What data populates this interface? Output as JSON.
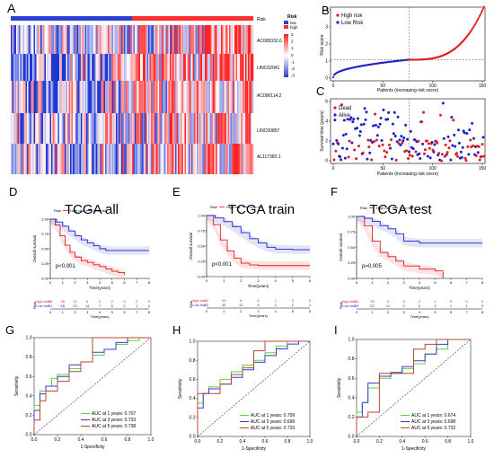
{
  "colors": {
    "high": "#e31a1c",
    "low": "#1f1fcc",
    "heat_high": "#ff2a2a",
    "heat_low": "#1f3fd0",
    "roc_1yr": "#5fd33f",
    "roc_3yr": "#3a3ad0",
    "roc_5yr": "#b34a33"
  },
  "panel_letters": {
    "A": "A",
    "B": "B",
    "C": "C",
    "D": "D",
    "E": "E",
    "F": "F",
    "G": "G",
    "H": "H",
    "I": "I"
  },
  "heatmap": {
    "risk_label": "Risk",
    "genes": [
      "AC005332.6",
      "LINC02041",
      "AC090114.2",
      "LINC00857",
      "AL117382.1"
    ],
    "legend_title": "Risk",
    "legend_low": "low",
    "legend_high": "high",
    "scale_ticks": [
      "3",
      "2",
      "1",
      "0",
      "-1",
      "-2",
      "-3"
    ]
  },
  "chart_data": [
    {
      "panel": "B",
      "type": "scatter",
      "ylabel": "Risk score",
      "xlabel": "Patients (increasing risk socre)",
      "xticks": [
        "0",
        "50",
        "100",
        "150"
      ],
      "yticks": [
        "0",
        "1",
        "2",
        "3",
        "4"
      ],
      "ylim": [
        0,
        4.3
      ],
      "xlim": [
        0,
        178
      ],
      "cutoff_x": 89,
      "cutoff_y": 1.08,
      "legend": [
        "High risk",
        "Low Risk"
      ]
    },
    {
      "panel": "C",
      "type": "scatter",
      "ylabel": "Survival time (years)",
      "xlabel": "Patients (increasing risk socre)",
      "xticks": [
        "0",
        "50",
        "100",
        "150"
      ],
      "yticks": [
        "0",
        "2",
        "4",
        "6"
      ],
      "ylim": [
        0,
        7
      ],
      "cutoff_x": 89,
      "legend": [
        "Dead",
        "Alive"
      ]
    },
    {
      "panel": "D",
      "type": "line",
      "title": "TCGA all",
      "legend_title": "Risk",
      "legend": [
        "High risk",
        "Low risk"
      ],
      "ylabel": "Overall survival",
      "xlabel": "Time(years)",
      "xticks": [
        "0",
        "1",
        "2",
        "3",
        "4",
        "5",
        "6",
        "7",
        "8"
      ],
      "yticks": [
        "0.00",
        "0.25",
        "0.50",
        "0.75",
        "1.00"
      ],
      "pvalue": "p<0.001",
      "table_ylabel": "Risk",
      "table_rows": [
        {
          "label": "High risk",
          "values": [
            "88",
            "49",
            "12",
            "6",
            "2",
            "2",
            "0",
            "0",
            "0"
          ]
        },
        {
          "label": "Low risk",
          "values": [
            "91",
            "65",
            "23",
            "14",
            "7",
            "5",
            "2",
            "1",
            "0"
          ]
        }
      ],
      "table_xlabel": "Time(years)",
      "series": [
        {
          "name": "High risk",
          "x": [
            0,
            0.4,
            0.8,
            1.2,
            1.6,
            2.0,
            2.5,
            3.0,
            3.5,
            4.0,
            4.5,
            5.0,
            5.5,
            6.0
          ],
          "y": [
            1.0,
            0.9,
            0.72,
            0.56,
            0.44,
            0.36,
            0.3,
            0.27,
            0.23,
            0.2,
            0.16,
            0.12,
            0.1,
            0.06
          ]
        },
        {
          "name": "Low risk",
          "x": [
            0,
            0.5,
            1.0,
            1.5,
            2.0,
            2.5,
            3.0,
            3.5,
            4.0,
            4.5,
            6.0,
            7.0,
            8.0
          ],
          "y": [
            1.0,
            0.95,
            0.88,
            0.8,
            0.72,
            0.65,
            0.6,
            0.55,
            0.5,
            0.47,
            0.47,
            0.47,
            0.47
          ]
        }
      ]
    },
    {
      "panel": "E",
      "type": "line",
      "title": "TCGA train",
      "legend_title": "Risk",
      "legend": [
        "High risk",
        "Low risk"
      ],
      "ylabel": "Overall survival",
      "xlabel": "Time(years)",
      "xticks": [
        "0",
        "1",
        "2",
        "3",
        "4",
        "5",
        "6"
      ],
      "yticks": [
        "0.00",
        "0.25",
        "0.50",
        "0.75",
        "1.00"
      ],
      "pvalue": "p<0.001",
      "table_ylabel": "Risk",
      "table_rows": [
        {
          "label": "High risk",
          "values": [
            "62",
            "34",
            "8",
            "5",
            "2",
            "2",
            "0"
          ]
        },
        {
          "label": "Low risk",
          "values": [
            "62",
            "43",
            "12",
            "5",
            "2",
            "2",
            "1"
          ]
        }
      ],
      "table_xlabel": "Time(years)",
      "series": [
        {
          "name": "High risk",
          "x": [
            0,
            0.4,
            0.8,
            1.2,
            1.6,
            2.0,
            2.5,
            3.0,
            3.5,
            4.0,
            5.0,
            6.0
          ],
          "y": [
            1.0,
            0.85,
            0.6,
            0.42,
            0.3,
            0.22,
            0.19,
            0.18,
            0.18,
            0.18,
            0.18,
            0.18
          ]
        },
        {
          "name": "Low risk",
          "x": [
            0,
            0.5,
            1.0,
            1.5,
            2.0,
            2.5,
            3.0,
            3.5,
            4.0,
            5.0,
            6.0
          ],
          "y": [
            1.0,
            0.96,
            0.9,
            0.82,
            0.72,
            0.62,
            0.55,
            0.48,
            0.45,
            0.44,
            0.44
          ]
        }
      ]
    },
    {
      "panel": "F",
      "type": "line",
      "title": "TCGA test",
      "legend_title": "Risk",
      "legend": [
        "High risk",
        "Low risk"
      ],
      "ylabel": "Overall survival",
      "xlabel": "Time(years)",
      "xticks": [
        "0",
        "1",
        "2",
        "3",
        "4",
        "5",
        "6",
        "7",
        "8"
      ],
      "yticks": [
        "0.00",
        "0.25",
        "0.50",
        "0.75",
        "1.00"
      ],
      "pvalue": "p=0.005",
      "table_ylabel": "Risk",
      "table_rows": [
        {
          "label": "High risk",
          "values": [
            "24",
            "15",
            "3",
            "3",
            "2",
            "1",
            "0",
            "0",
            "0"
          ]
        },
        {
          "label": "Low risk",
          "values": [
            "29",
            "22",
            "11",
            "9",
            "5",
            "3",
            "1",
            "1",
            "0"
          ]
        }
      ],
      "table_xlabel": "Time(years)",
      "series": [
        {
          "name": "High risk",
          "x": [
            0,
            0.5,
            1.0,
            1.5,
            2.0,
            2.5,
            3.0,
            4.0,
            5.0,
            5.5
          ],
          "y": [
            1.0,
            0.85,
            0.6,
            0.42,
            0.35,
            0.28,
            0.2,
            0.15,
            0.12,
            0.0
          ]
        },
        {
          "name": "Low risk",
          "x": [
            0,
            0.5,
            1.0,
            1.5,
            2.0,
            2.5,
            3.0,
            4.0,
            5.0,
            6.0,
            7.0,
            8.0
          ],
          "y": [
            1.0,
            0.97,
            0.92,
            0.85,
            0.8,
            0.72,
            0.6,
            0.57,
            0.57,
            0.57,
            0.57,
            0.57
          ]
        }
      ]
    },
    {
      "panel": "G",
      "type": "line",
      "ylabel": "Sensitivity",
      "xlabel": "1-Specificity",
      "xticks": [
        "0.0",
        "0.2",
        "0.4",
        "0.6",
        "0.8",
        "1.0"
      ],
      "yticks": [
        "0.0",
        "0.2",
        "0.4",
        "0.6",
        "0.8",
        "1.0"
      ],
      "legend": [
        "AUC at 1 years: 0.707",
        "AUC at 3 years: 0.733",
        "AUC at 5 years: 0.738"
      ],
      "series": [
        {
          "name": "AUC at 1 years: 0.707",
          "x": [
            0,
            0.05,
            0.1,
            0.15,
            0.2,
            0.3,
            0.4,
            0.5,
            0.6,
            0.7,
            0.8,
            0.9,
            1.0
          ],
          "y": [
            0,
            0.3,
            0.45,
            0.5,
            0.58,
            0.62,
            0.68,
            0.75,
            0.82,
            0.88,
            0.93,
            0.97,
            1.0
          ]
        },
        {
          "name": "AUC at 3 years: 0.733",
          "x": [
            0,
            0.05,
            0.1,
            0.2,
            0.3,
            0.4,
            0.5,
            0.6,
            0.7,
            0.8,
            0.9,
            1.0
          ],
          "y": [
            0,
            0.25,
            0.42,
            0.5,
            0.6,
            0.72,
            0.75,
            0.85,
            0.88,
            0.95,
            1.0,
            1.0
          ]
        },
        {
          "name": "AUC at 5 years: 0.738",
          "x": [
            0,
            0.05,
            0.1,
            0.2,
            0.3,
            0.4,
            0.5,
            0.6,
            0.7,
            0.8,
            0.9,
            1.0
          ],
          "y": [
            0,
            0.15,
            0.35,
            0.45,
            0.55,
            0.65,
            0.75,
            1.0,
            1.0,
            1.0,
            1.0,
            1.0
          ]
        }
      ]
    },
    {
      "panel": "H",
      "type": "line",
      "ylabel": "Sensitivity",
      "xlabel": "1-Specificity",
      "xticks": [
        "0.0",
        "0.2",
        "0.4",
        "0.6",
        "0.8",
        "1.0"
      ],
      "yticks": [
        "0.0",
        "0.2",
        "0.4",
        "0.6",
        "0.8",
        "1.0"
      ],
      "legend": [
        "AUC at 1 years: 0.709",
        "AUC at 3 years: 0.699",
        "AUC at 5 years: 0.733"
      ],
      "series": [
        {
          "name": "AUC at 1 years: 0.709",
          "x": [
            0,
            0.05,
            0.1,
            0.2,
            0.3,
            0.4,
            0.5,
            0.6,
            0.7,
            0.8,
            0.9,
            1.0
          ],
          "y": [
            0,
            0.35,
            0.45,
            0.52,
            0.6,
            0.68,
            0.75,
            0.8,
            0.88,
            0.95,
            1.0,
            1.0
          ]
        },
        {
          "name": "AUC at 3 years: 0.699",
          "x": [
            0,
            0.05,
            0.1,
            0.2,
            0.3,
            0.4,
            0.5,
            0.6,
            0.7,
            0.8,
            0.9,
            1.0
          ],
          "y": [
            0,
            0.3,
            0.45,
            0.5,
            0.55,
            0.62,
            0.7,
            0.78,
            0.85,
            0.92,
            0.97,
            1.0
          ]
        },
        {
          "name": "AUC at 5 years: 0.733",
          "x": [
            0,
            0.05,
            0.1,
            0.2,
            0.3,
            0.4,
            0.5,
            0.6,
            0.7,
            0.8,
            0.9,
            1.0
          ],
          "y": [
            0,
            0.45,
            0.45,
            0.45,
            0.55,
            0.65,
            0.72,
            0.9,
            1.0,
            1.0,
            1.0,
            1.0
          ]
        }
      ]
    },
    {
      "panel": "I",
      "type": "line",
      "ylabel": "Sensitivity",
      "xlabel": "1-Specificity",
      "xticks": [
        "0.0",
        "0.2",
        "0.4",
        "0.6",
        "0.8",
        "1.0"
      ],
      "yticks": [
        "0.0",
        "0.2",
        "0.4",
        "0.6",
        "0.8",
        "1.0"
      ],
      "legend": [
        "AUC at 1 years: 0.674",
        "AUC at 3 years: 0.698",
        "AUC at 5 years: 0.732"
      ],
      "series": [
        {
          "name": "AUC at 1 years: 0.674",
          "x": [
            0,
            0.05,
            0.1,
            0.2,
            0.3,
            0.4,
            0.5,
            0.6,
            0.7,
            0.8,
            0.9,
            1.0
          ],
          "y": [
            0,
            0.25,
            0.35,
            0.5,
            0.6,
            0.65,
            0.7,
            0.75,
            0.85,
            0.9,
            1.0,
            1.0
          ]
        },
        {
          "name": "AUC at 3 years: 0.698",
          "x": [
            0,
            0.05,
            0.1,
            0.2,
            0.3,
            0.4,
            0.5,
            0.6,
            0.7,
            0.8,
            0.9,
            1.0
          ],
          "y": [
            0,
            0.2,
            0.35,
            0.55,
            0.62,
            0.66,
            0.72,
            0.78,
            0.85,
            0.95,
            1.0,
            1.0
          ]
        },
        {
          "name": "AUC at 5 years: 0.732",
          "x": [
            0,
            0.1,
            0.2,
            0.25,
            0.3,
            0.4,
            0.5,
            0.6,
            0.7,
            0.8,
            0.9,
            1.0
          ],
          "y": [
            0,
            0.2,
            0.25,
            0.65,
            0.65,
            0.65,
            0.65,
            0.9,
            0.95,
            1.0,
            1.0,
            1.0
          ]
        }
      ]
    }
  ]
}
